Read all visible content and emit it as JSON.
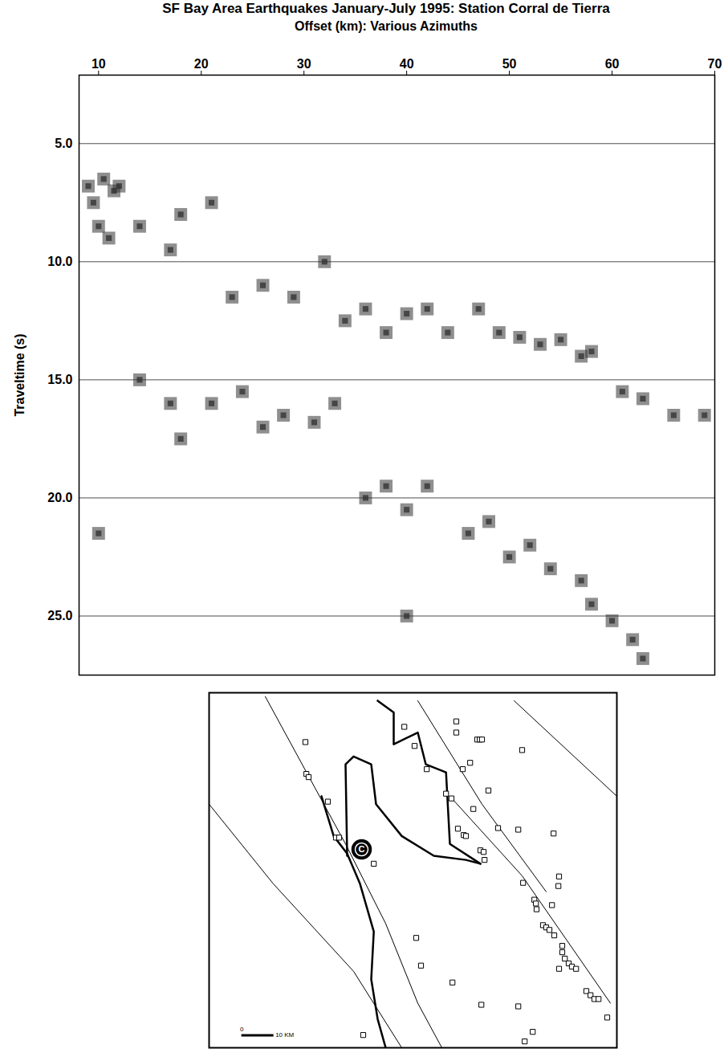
{
  "chart_data": [
    {
      "type": "scatter",
      "title": "SF Bay Area Earthquakes January-July 1995: Station Corral de Tierra",
      "x_label": "Offset (km): Various Azimuths",
      "y_label": "Traveltime (s)",
      "marker": "square",
      "color": "#333333",
      "grid": true,
      "x": [
        9,
        9.5,
        10.5,
        11.5,
        12,
        10,
        11,
        14,
        17,
        18,
        21,
        23,
        26,
        29,
        32,
        34,
        36,
        38,
        40,
        42,
        44,
        47,
        49,
        51,
        53,
        55,
        57,
        58,
        61,
        63,
        66,
        69,
        14,
        17,
        18,
        21,
        24,
        26,
        28,
        31,
        33,
        36,
        38,
        40,
        42,
        46,
        48,
        50,
        52,
        54,
        57,
        58,
        60,
        62,
        63,
        40,
        10
      ],
      "values": [
        6.8,
        7.5,
        6.5,
        7,
        6.8,
        8.5,
        9,
        8.5,
        9.5,
        8,
        7.5,
        11.5,
        11,
        11.5,
        10,
        12.5,
        12,
        13,
        12.2,
        12,
        13,
        12,
        13,
        13.2,
        13.5,
        13.3,
        14,
        13.8,
        15.5,
        15.8,
        16.5,
        16.5,
        15,
        16,
        17.5,
        16,
        15.5,
        17,
        16.5,
        16.8,
        16,
        20,
        19.5,
        20.5,
        19.5,
        21.5,
        21,
        22.5,
        22,
        23,
        23.5,
        24.5,
        25.2,
        26,
        26.8,
        25,
        21.5
      ],
      "xlim": [
        8.1,
        70
      ],
      "xticks": [
        10,
        20,
        30,
        40,
        50,
        60,
        70
      ],
      "ylim": [
        2.1,
        27.5
      ],
      "yticks": [
        {
          "value": 5,
          "label": "5.0"
        },
        {
          "value": 10,
          "label": "10.0"
        },
        {
          "value": 15,
          "label": "15.0"
        },
        {
          "value": 20,
          "label": "20.0"
        },
        {
          "value": 25,
          "label": "25.0"
        }
      ]
    },
    {
      "type": "map",
      "tick_labels": false,
      "xlim": [
        0,
        127
      ],
      "ylim": [
        0,
        111.5
      ],
      "station": {
        "label": "C",
        "x": 47.5,
        "y": 62.3
      },
      "scale_bar": {
        "length": 10,
        "labels": [
          "0",
          "10 KM"
        ]
      },
      "events": {
        "x": [
          30,
          30.3,
          31,
          37,
          39.5,
          40.5,
          51.3,
          60.8,
          64,
          77,
          77,
          83.5,
          84.3,
          85,
          97.5,
          67.8,
          79,
          81.3,
          73.8,
          75.5,
          87,
          82.3,
          77.5,
          79.3,
          80,
          90,
          84.5,
          85.5,
          85.8,
          96.3,
          107.3,
          109,
          108.8,
          97.8,
          101.3,
          101.8,
          102,
          106.8,
          104,
          105,
          106,
          107.5,
          110,
          110,
          110.8,
          112,
          113,
          114.3,
          109,
          117.5,
          118.8,
          120,
          121.3,
          124,
          64.5,
          66,
          75.8,
          84.8,
          96.3,
          100.8,
          98.3,
          48
        ],
        "y": [
          96,
          86,
          85,
          77.3,
          66,
          66,
          57.8,
          100.8,
          94.8,
          102.5,
          99,
          96.8,
          96.8,
          96.8,
          93.5,
          87.5,
          87.5,
          89.5,
          79.8,
          78.3,
          80.8,
          75,
          68.8,
          66.8,
          66.5,
          69,
          62,
          61.5,
          59,
          68.5,
          67.3,
          53.8,
          50.8,
          51.8,
          46.5,
          45.3,
          43.5,
          44.8,
          38.5,
          37.8,
          37,
          35.3,
          32,
          30,
          28,
          26.5,
          25.5,
          24.8,
          24.8,
          17.8,
          16.5,
          15.3,
          15.3,
          9.5,
          34.5,
          25.8,
          20.5,
          13.5,
          13,
          5,
          2,
          4
        ]
      },
      "shorelines": [
        [
          [
            35,
            79
          ],
          [
            38.8,
            66.5
          ],
          [
            43,
            61
          ],
          [
            47,
            51.5
          ],
          [
            51.3,
            36.5
          ],
          [
            50.5,
            21.5
          ],
          [
            52.5,
            9
          ],
          [
            55,
            0
          ]
        ],
        [
          [
            43,
            60.3
          ],
          [
            42.5,
            89
          ],
          [
            45,
            91.5
          ],
          [
            50.5,
            89
          ],
          [
            52,
            76.5
          ],
          [
            60,
            66.5
          ],
          [
            70,
            60.3
          ],
          [
            80,
            59
          ],
          [
            84.5,
            57.8
          ]
        ],
        [
          [
            84.5,
            57.8
          ],
          [
            75,
            64
          ],
          [
            73.8,
            86.5
          ],
          [
            67.5,
            89
          ],
          [
            65,
            99
          ],
          [
            57.5,
            95.3
          ],
          [
            57.5,
            105.3
          ],
          [
            52.5,
            109
          ]
        ]
      ],
      "faults": [
        [
          [
            17.5,
            110.3
          ],
          [
            42.5,
            64
          ],
          [
            55,
            39
          ],
          [
            65,
            14
          ],
          [
            72.5,
            0
          ]
        ],
        [
          [
            65,
            109
          ],
          [
            85,
            76.5
          ],
          [
            105,
            49
          ]
        ],
        [
          [
            75,
            79
          ],
          [
            97.5,
            54
          ],
          [
            125,
            14
          ]
        ],
        [
          [
            95,
            109
          ],
          [
            127,
            79
          ]
        ],
        [
          [
            0,
            76.5
          ],
          [
            20,
            51.5
          ],
          [
            45,
            24
          ],
          [
            60,
            0
          ]
        ]
      ]
    }
  ]
}
